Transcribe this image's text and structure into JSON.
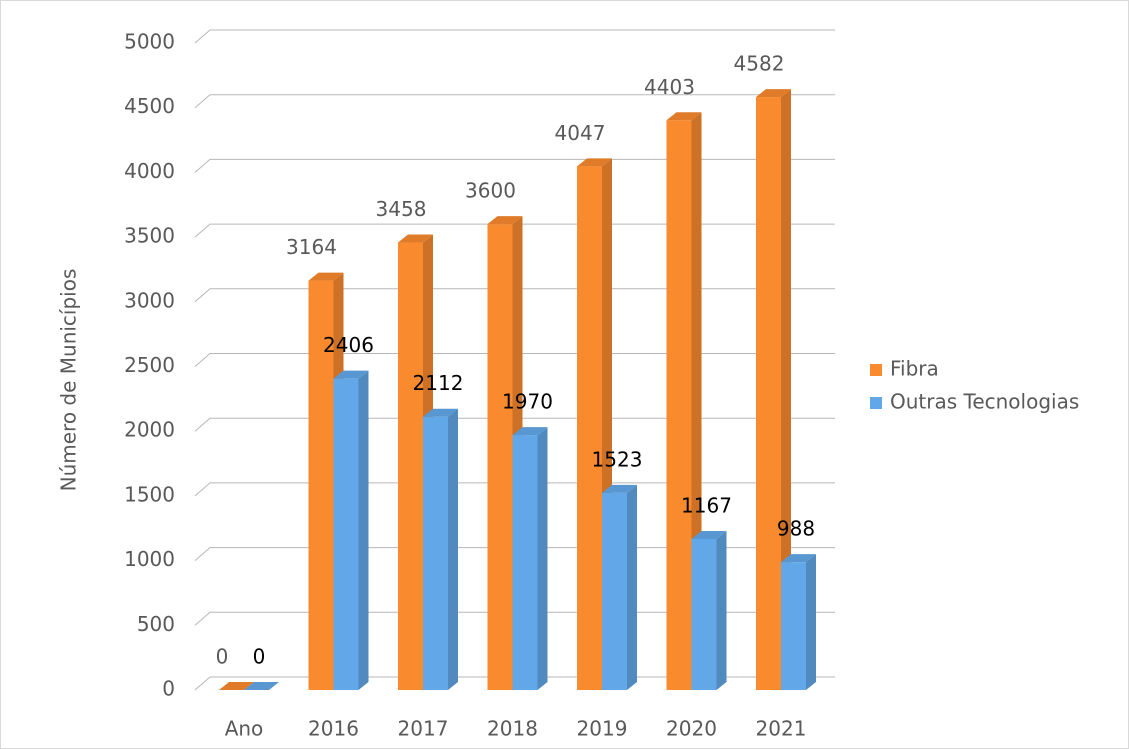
{
  "chart_data": {
    "type": "bar3d",
    "categories": [
      "Ano",
      "2016",
      "2017",
      "2018",
      "2019",
      "2020",
      "2021"
    ],
    "series": [
      {
        "name": "Fibra",
        "color": "#f98a2e",
        "values": [
          0,
          3164,
          3458,
          3600,
          4047,
          4403,
          4582
        ]
      },
      {
        "name": "Outras Tecnologias",
        "color": "#62a8e8",
        "values": [
          0,
          2406,
          2112,
          1970,
          1523,
          1167,
          988
        ]
      }
    ],
    "ylabel": "Número de Municípios",
    "ylim": [
      0,
      5000
    ],
    "yticks": [
      0,
      500,
      1000,
      1500,
      2000,
      2500,
      3000,
      3500,
      4000,
      4500,
      5000
    ],
    "grid": true,
    "legend": "right"
  }
}
